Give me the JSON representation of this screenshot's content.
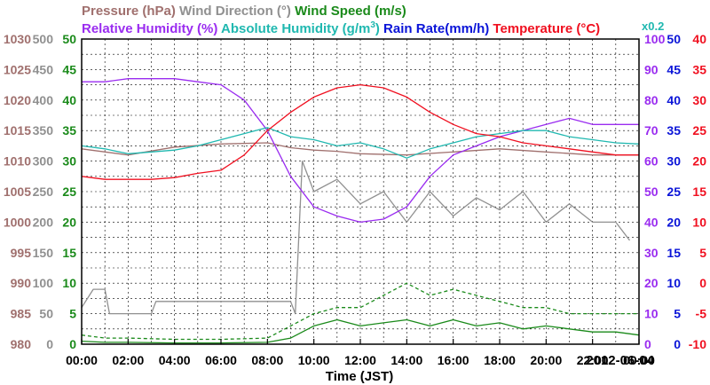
{
  "chart_data": {
    "type": "line",
    "xlabel": "Time (JST)",
    "date_label": "2012-06-04",
    "x_ticks": [
      "00:00",
      "02:00",
      "04:00",
      "06:00",
      "08:00",
      "10:00",
      "12:00",
      "14:00",
      "16:00",
      "18:00",
      "20:00",
      "22:00",
      "00:00"
    ],
    "x_range_hours": [
      0,
      24
    ],
    "grid": true,
    "legend": {
      "row1": [
        {
          "text": "Pressure (hPa)",
          "color": "#a0706e"
        },
        {
          "text": "Wind Direction (°)",
          "color": "#909090"
        },
        {
          "text": "Wind Speed (m/s)",
          "color": "#1a8a1a"
        }
      ],
      "row2": [
        {
          "text": "Relative Humidity (%)",
          "color": "#9a2cf0"
        },
        {
          "text": "Absolute Humidity (g/m",
          "sup": "3",
          "tail": ")",
          "color": "#20b8b0"
        },
        {
          "text": "Rain Rate(mm/h)",
          "color": "#0a14d8"
        },
        {
          "text": "Temperature (°C)",
          "color": "#f01020"
        }
      ],
      "scale_note": {
        "text": "x0.2",
        "color": "#20b8b0"
      }
    },
    "axes": {
      "pressure": {
        "color": "#a0706e",
        "range": [
          980,
          1030
        ],
        "ticks": [
          "980",
          "985",
          "990",
          "995",
          "1000",
          "1005",
          "1010",
          "1015",
          "1020",
          "1025",
          "1030"
        ]
      },
      "wind_direction": {
        "color": "#909090",
        "range": [
          0,
          500
        ],
        "ticks": [
          "0",
          "50",
          "100",
          "150",
          "200",
          "250",
          "300",
          "350",
          "400",
          "450",
          "500"
        ]
      },
      "wind_speed": {
        "color": "#1a8a1a",
        "range": [
          0,
          50
        ],
        "ticks": [
          "0",
          "5",
          "10",
          "15",
          "20",
          "25",
          "30",
          "35",
          "40",
          "45",
          "50"
        ]
      },
      "relative_humidity": {
        "color": "#9a2cf0",
        "range": [
          0,
          100
        ],
        "ticks": [
          "0",
          "10",
          "20",
          "30",
          "40",
          "50",
          "60",
          "70",
          "80",
          "90",
          "100"
        ]
      },
      "rain_rate": {
        "color": "#0a14d8",
        "range": [
          0,
          50
        ],
        "ticks": [
          "0",
          "5",
          "10",
          "15",
          "20",
          "25",
          "30",
          "35",
          "40",
          "45",
          "50"
        ]
      },
      "temperature": {
        "color": "#f01020",
        "range": [
          -10,
          40
        ],
        "ticks": [
          "-10",
          "-5",
          "0",
          "5",
          "10",
          "15",
          "20",
          "25",
          "30",
          "35",
          "40"
        ]
      }
    },
    "series": [
      {
        "name": "Pressure (hPa)",
        "axis": "pressure",
        "color": "#a0706e",
        "style": "solid",
        "x": [
          0,
          2,
          4,
          6,
          8,
          9,
          10,
          11,
          12,
          14,
          16,
          18,
          20,
          22,
          24
        ],
        "y": [
          1012,
          1011,
          1012.3,
          1012.8,
          1013,
          1012.2,
          1011.8,
          1011.6,
          1011.2,
          1011,
          1011.5,
          1012,
          1011.5,
          1011,
          1011
        ]
      },
      {
        "name": "Wind Direction (°)",
        "axis": "wind_direction",
        "color": "#909090",
        "style": "solid",
        "x": [
          0,
          0.5,
          1,
          1.2,
          1.5,
          2,
          3,
          3.2,
          6,
          8,
          9,
          9.2,
          9.5,
          10,
          11,
          12,
          13,
          14,
          15,
          16,
          17,
          18,
          19,
          20,
          21,
          22,
          23,
          23.6
        ],
        "y": [
          60,
          90,
          90,
          50,
          50,
          50,
          50,
          70,
          70,
          70,
          70,
          50,
          300,
          250,
          270,
          230,
          250,
          200,
          250,
          210,
          240,
          220,
          250,
          200,
          230,
          200,
          200,
          170
        ]
      },
      {
        "name": "Wind Speed (m/s) avg",
        "axis": "wind_speed",
        "color": "#1a8a1a",
        "style": "solid",
        "x": [
          0,
          1,
          2,
          4,
          6,
          8,
          9,
          10,
          11,
          12,
          13,
          14,
          15,
          16,
          17,
          18,
          19,
          20,
          21,
          22,
          23,
          24
        ],
        "y": [
          0.5,
          0.3,
          0.3,
          0.2,
          0.2,
          0.3,
          1,
          3,
          4,
          3,
          3.5,
          4,
          3,
          4,
          3,
          3.5,
          2.5,
          3,
          2.5,
          2,
          2,
          1.5
        ]
      },
      {
        "name": "Wind Speed (m/s) gust",
        "axis": "wind_speed",
        "color": "#1a8a1a",
        "style": "dashed",
        "x": [
          0,
          1,
          2,
          4,
          6,
          8,
          9,
          10,
          11,
          12,
          13,
          14,
          15,
          16,
          17,
          18,
          19,
          20,
          21,
          22,
          23,
          24
        ],
        "y": [
          1.5,
          1,
          1,
          0.8,
          0.8,
          1,
          3,
          5,
          6,
          6,
          8,
          10,
          8,
          9,
          8,
          7,
          6,
          6,
          5,
          5,
          5,
          5
        ]
      },
      {
        "name": "Relative Humidity (%)",
        "axis": "relative_humidity",
        "color": "#9a2cf0",
        "style": "solid",
        "x": [
          0,
          1,
          2,
          3,
          4,
          5,
          6,
          7,
          8,
          9,
          10,
          11,
          12,
          13,
          14,
          15,
          16,
          17,
          18,
          19,
          20,
          21,
          22,
          23,
          24
        ],
        "y": [
          86,
          86,
          87,
          87,
          87,
          86,
          85,
          80,
          70,
          55,
          45,
          42,
          40,
          41,
          45,
          55,
          62,
          65,
          68,
          70,
          72,
          74,
          72,
          72,
          72
        ]
      },
      {
        "name": "Absolute Humidity (g/m3)",
        "axis": "wind_direction",
        "color": "#20b8b0",
        "style": "solid",
        "x": [
          0,
          1,
          2,
          3,
          4,
          5,
          6,
          7,
          8,
          9,
          10,
          11,
          12,
          13,
          14,
          15,
          16,
          17,
          18,
          19,
          20,
          21,
          22,
          23,
          24
        ],
        "y": [
          325,
          320,
          312,
          315,
          318,
          325,
          335,
          345,
          355,
          340,
          335,
          325,
          330,
          320,
          305,
          320,
          330,
          340,
          345,
          350,
          350,
          340,
          335,
          330,
          328
        ]
      },
      {
        "name": "Temperature (°C)",
        "axis": "temperature",
        "color": "#f01020",
        "style": "solid",
        "x": [
          0,
          1,
          2,
          3,
          4,
          5,
          6,
          7,
          8,
          9,
          10,
          11,
          12,
          13,
          14,
          15,
          16,
          17,
          18,
          19,
          20,
          21,
          22,
          23,
          24
        ],
        "y": [
          17.5,
          17,
          17,
          17,
          17.3,
          18,
          18.5,
          21,
          25,
          28,
          30.5,
          32,
          32.5,
          32,
          30.5,
          28,
          26,
          24.5,
          24,
          23,
          22.5,
          22,
          21.5,
          21,
          21
        ]
      }
    ]
  }
}
